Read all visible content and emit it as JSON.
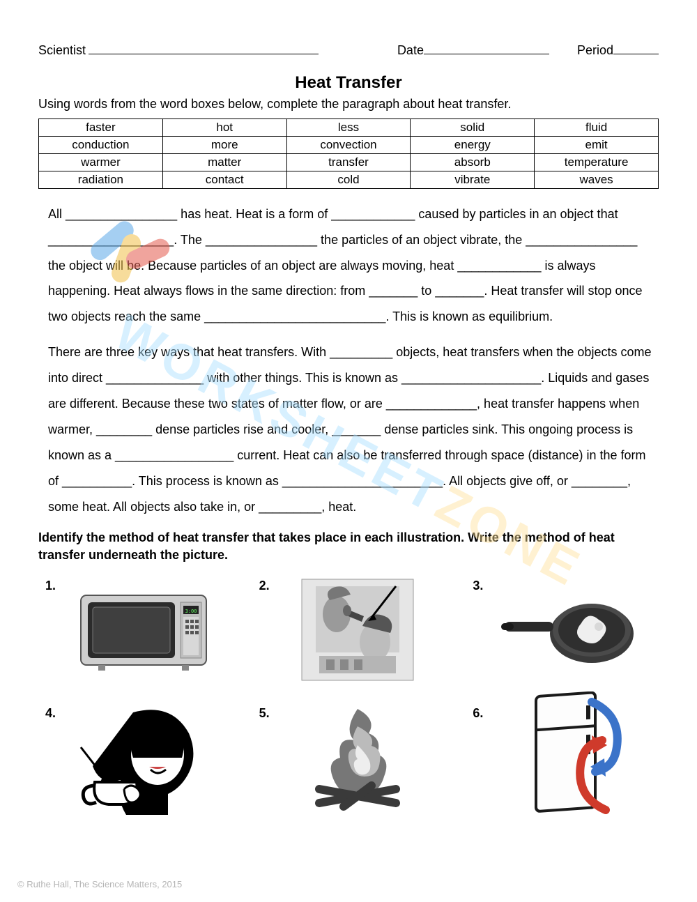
{
  "header": {
    "scientist_label": "Scientist",
    "date_label": "Date",
    "period_label": "Period"
  },
  "title": "Heat Transfer",
  "instruction": "Using words from the word boxes below, complete the paragraph about heat transfer.",
  "wordbox": {
    "rows": [
      [
        "faster",
        "hot",
        "less",
        "solid",
        "fluid"
      ],
      [
        "conduction",
        "more",
        "convection",
        "energy",
        "emit"
      ],
      [
        "warmer",
        "matter",
        "transfer",
        "absorb",
        "temperature"
      ],
      [
        "radiation",
        "contact",
        "cold",
        "vibrate",
        "waves"
      ]
    ]
  },
  "paragraph1_html": "All ________________ has heat. Heat is a form of ____________ caused by particles in an object that __________________. The ________________ the particles of an object vibrate, the ________________ the object will be. Because particles of an object are always moving, heat ____________ is always happening. Heat always flows in the same direction: from _______ to _______. Heat transfer will stop once two objects reach the same __________________________. This is known as equilibrium.",
  "paragraph2_html": "There are three key ways that heat transfers. With _________ objects, heat transfers when the objects come into direct ______________ with other things. This is known as ____________________. Liquids and gases are different. Because these two states of matter flow, or are _____________, heat transfer happens when warmer, ________ dense particles rise and cooler, _______ dense particles sink. This ongoing process is known as a _________________ current. Heat can also be transferred through space (distance) in the form of __________. This process is known as _______________________. All objects give off, or ________, some heat. All objects also take in, or _________, heat.",
  "section2_heading": "Identify the method of heat transfer that takes place in each illustration. Write the method of heat transfer underneath the picture.",
  "illustrations": [
    {
      "num": "1.",
      "name": "microwave"
    },
    {
      "num": "2.",
      "name": "hair-dryer"
    },
    {
      "num": "3.",
      "name": "frying-pan"
    },
    {
      "num": "4.",
      "name": "coffee-cup"
    },
    {
      "num": "5.",
      "name": "campfire"
    },
    {
      "num": "6.",
      "name": "refrigerator"
    }
  ],
  "footer": "© Ruthe Hall, The Science Matters, 2015",
  "watermark": {
    "part1": "WORKSHEET",
    "part2": "ZONE"
  },
  "colors": {
    "page_bg": "#ffffff",
    "text": "#000000",
    "footer": "#b5b5b5",
    "wm_blue": "#a8e0ff",
    "wm_yellow": "#ffe29a",
    "logo_blue": "#5da9e8",
    "logo_red": "#e45b4e",
    "logo_yellow": "#f2c14a",
    "fridge_blue": "#3b73c9",
    "fridge_red": "#cf3a2b"
  }
}
